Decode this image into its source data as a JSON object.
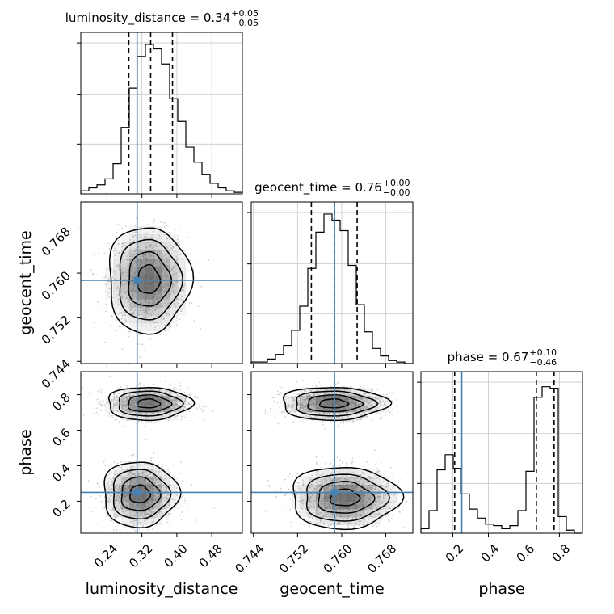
{
  "chart_data": {
    "type": "corner",
    "parameters": [
      {
        "name": "luminosity_distance",
        "range": [
          0.18,
          0.55
        ],
        "ticks": [
          "0.24",
          "0.32",
          "0.40",
          "0.48"
        ],
        "tick_values": [
          0.24,
          0.32,
          0.4,
          0.48
        ]
      },
      {
        "name": "geocent_time",
        "range": [
          0.7436,
          0.7729
        ],
        "ticks": [
          "0.744",
          "0.752",
          "0.760",
          "0.768"
        ],
        "tick_values": [
          0.744,
          0.752,
          0.76,
          0.768
        ]
      },
      {
        "name": "phase",
        "range": [
          0.02,
          0.93
        ],
        "ticks": [
          "0.2",
          "0.4",
          "0.6",
          "0.8"
        ],
        "tick_values": [
          0.2,
          0.4,
          0.6,
          0.8
        ]
      }
    ],
    "titles": [
      {
        "label": "luminosity_distance",
        "value": "0.34",
        "plus": "+0.05",
        "minus": "−0.05"
      },
      {
        "label": "geocent_time",
        "value": "0.76",
        "plus": "+0.00",
        "minus": "−0.00"
      },
      {
        "label": "phase",
        "value": "0.67",
        "plus": "+0.10",
        "minus": "−0.46"
      }
    ],
    "truths": [
      0.309,
      0.7587,
      0.25
    ],
    "quantiles": [
      [
        0.29,
        0.34,
        0.39
      ],
      [
        0.7545,
        0.7587,
        0.7628
      ],
      [
        0.21,
        0.67,
        0.77
      ]
    ],
    "histograms": [
      {
        "bins": [
          0.18,
          0.55
        ],
        "counts": [
          0.02,
          0.04,
          0.06,
          0.1,
          0.2,
          0.44,
          0.7,
          0.91,
          0.99,
          0.96,
          0.86,
          0.63,
          0.48,
          0.31,
          0.21,
          0.13,
          0.07,
          0.04,
          0.02,
          0.01
        ]
      },
      {
        "bins": [
          0.7436,
          0.7729
        ],
        "counts": [
          0.01,
          0.01,
          0.03,
          0.06,
          0.12,
          0.22,
          0.38,
          0.63,
          0.87,
          0.99,
          0.95,
          0.88,
          0.65,
          0.39,
          0.21,
          0.1,
          0.05,
          0.02,
          0.01,
          0.0
        ]
      },
      {
        "bins": [
          0.02,
          0.93
        ],
        "counts": [
          0.03,
          0.15,
          0.42,
          0.52,
          0.43,
          0.26,
          0.16,
          0.1,
          0.06,
          0.05,
          0.03,
          0.05,
          0.15,
          0.41,
          0.9,
          0.97,
          0.96,
          0.11,
          0.02,
          0.0
        ]
      }
    ],
    "blobs": {
      "0-1": [
        {
          "cx": 0.335,
          "cy": 0.7588,
          "sx": 0.046,
          "sy": 0.0047
        }
      ],
      "0-2": [
        {
          "cx": 0.335,
          "cy": 0.75,
          "sx": 0.047,
          "sy": 0.045
        },
        {
          "cx": 0.315,
          "cy": 0.24,
          "sx": 0.042,
          "sy": 0.09
        }
      ],
      "1-2": [
        {
          "cx": 0.7585,
          "cy": 0.75,
          "sx": 0.0047,
          "sy": 0.045
        },
        {
          "cx": 0.7605,
          "cy": 0.22,
          "sx": 0.0048,
          "sy": 0.085
        }
      ]
    },
    "colors": {
      "truth": "#4682b4",
      "line": "#000000",
      "grid": "#c8c8c8",
      "density": "#555555",
      "scatter": "#aaaaaa"
    },
    "grid": true
  }
}
